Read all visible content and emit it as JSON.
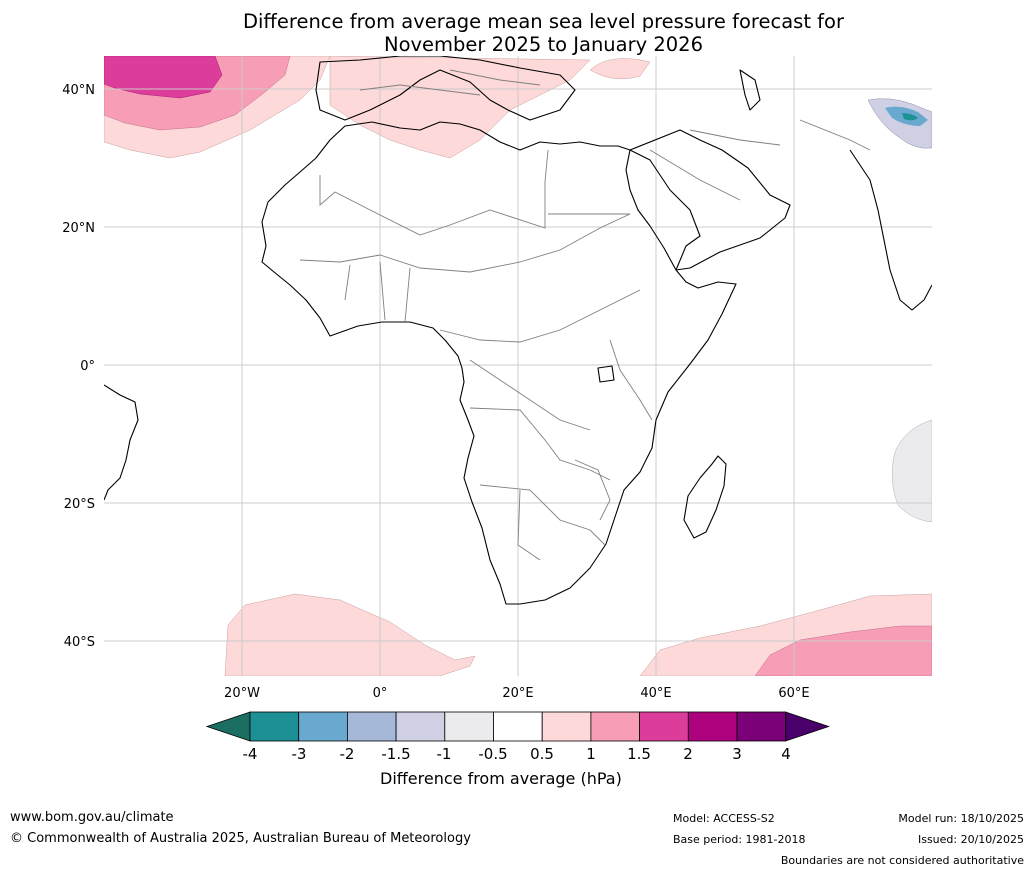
{
  "title": {
    "line1": "Difference from average mean sea level pressure forecast for",
    "line2": "November 2025 to January 2026"
  },
  "map": {
    "lat_labels": [
      "40°N",
      "20°N",
      "0°",
      "20°S",
      "40°S"
    ],
    "lon_labels": [
      "20°W",
      "0°",
      "20°E",
      "40°E",
      "60°E"
    ]
  },
  "colorbar": {
    "labels": [
      "-4",
      "-3",
      "-2",
      "-1.5",
      "-1",
      "-0.5",
      "0.5",
      "1",
      "1.5",
      "2",
      "3",
      "4"
    ],
    "colors": [
      "#1a6e62",
      "#1d9096",
      "#6aa9cf",
      "#a6b8d8",
      "#cfd0e3",
      "#ebebee",
      "#ffffff",
      "#fdd9d9",
      "#f79db6",
      "#dc3d9a",
      "#ae017e",
      "#7a0177",
      "#49006a"
    ],
    "title": "Difference from average (hPa)"
  },
  "footer": {
    "website": "www.bom.gov.au/climate",
    "copyright": "© Commonwealth of Australia 2025, Australian Bureau of Meteorology",
    "model": "Model: ACCESS-S2",
    "base_period": "Base period: 1981-2018",
    "model_run": "Model run: 18/10/2025",
    "issued": "Issued: 20/10/2025",
    "disclaimer": "Boundaries are not considered authoritative"
  }
}
